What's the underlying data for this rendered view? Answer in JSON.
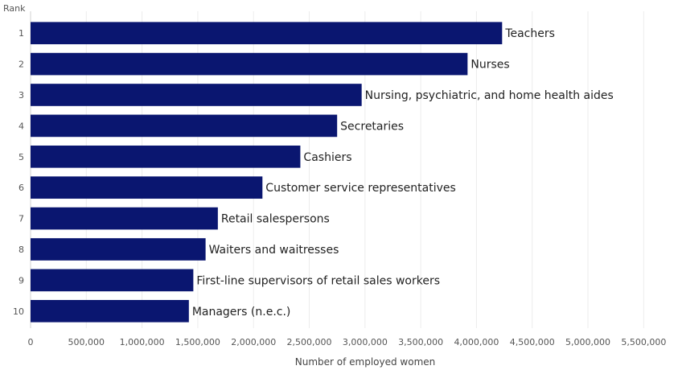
{
  "chart_data": {
    "type": "bar",
    "orientation": "horizontal",
    "ylabel": "Rank",
    "xlabel": "Number of employed women",
    "xlim": [
      0,
      5750000
    ],
    "x_ticks": [
      0,
      500000,
      1000000,
      1500000,
      2000000,
      2500000,
      3000000,
      3500000,
      4000000,
      4500000,
      5000000,
      5500000
    ],
    "x_tick_labels": [
      "0",
      "500,000",
      "1,000,000",
      "1,500,000",
      "2,000,000",
      "2,500,000",
      "3,000,000",
      "3,500,000",
      "4,000,000",
      "4,500,000",
      "5,000,000",
      "5,500,000"
    ],
    "grid": "vertical",
    "bar_color": "#0a1670",
    "bars": [
      {
        "rank": "1",
        "label": "Teachers",
        "value": 4230000
      },
      {
        "rank": "2",
        "label": "Nurses",
        "value": 3920000
      },
      {
        "rank": "3",
        "label": "Nursing, psychiatric, and home health aides",
        "value": 2970000
      },
      {
        "rank": "4",
        "label": "Secretaries",
        "value": 2750000
      },
      {
        "rank": "5",
        "label": "Cashiers",
        "value": 2420000
      },
      {
        "rank": "6",
        "label": "Customer service representatives",
        "value": 2080000
      },
      {
        "rank": "7",
        "label": "Retail salespersons",
        "value": 1680000
      },
      {
        "rank": "8",
        "label": "Waiters and waitresses",
        "value": 1570000
      },
      {
        "rank": "9",
        "label": "First-line supervisors of retail sales workers",
        "value": 1460000
      },
      {
        "rank": "10",
        "label": "Managers (n.e.c.)",
        "value": 1420000
      }
    ]
  }
}
